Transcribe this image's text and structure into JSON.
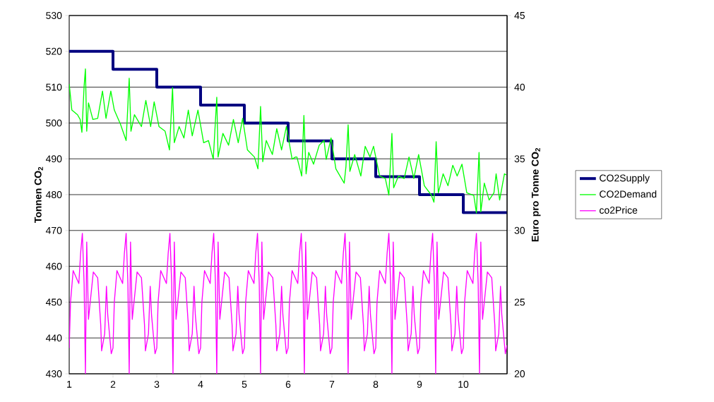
{
  "chart_data": {
    "type": "line",
    "ylabel": "Tonnen CO$_{2}$",
    "y2label": "Euro pro Tonne CO$_{2}$",
    "xlim": [
      1,
      11
    ],
    "xticks": [
      1,
      2,
      3,
      4,
      5,
      6,
      7,
      8,
      9,
      10
    ],
    "ylim": [
      430,
      530
    ],
    "yticks": [
      430,
      440,
      450,
      460,
      470,
      480,
      490,
      500,
      510,
      520,
      530
    ],
    "y2lim": [
      20,
      45
    ],
    "y2ticks": [
      20,
      25,
      30,
      35,
      40,
      45
    ],
    "grid": "y",
    "legend": "right",
    "series": [
      {
        "name": "CO2Supply",
        "type": "step",
        "color": "#000080",
        "x": [
          1,
          2,
          3,
          4,
          5,
          6,
          7,
          8,
          9,
          10,
          11
        ],
        "values": [
          520,
          515,
          510,
          505,
          500,
          495,
          490,
          485,
          480,
          475,
          475
        ]
      },
      {
        "name": "CO2Demand",
        "color": "#00ff00",
        "x": [
          1.0,
          1.06,
          1.19,
          1.25,
          1.29,
          1.34,
          1.37,
          1.4,
          1.44,
          1.54,
          1.65,
          1.76,
          1.84,
          1.95,
          2.03,
          2.17,
          2.3,
          2.37,
          2.41,
          2.49,
          2.65,
          2.75,
          2.86,
          2.94,
          3.05,
          3.19,
          3.29,
          3.36,
          3.4,
          3.51,
          3.62,
          3.72,
          3.81,
          3.94,
          4.07,
          4.18,
          4.29,
          4.37,
          4.4,
          4.51,
          4.64,
          4.75,
          4.86,
          4.96,
          5.07,
          5.23,
          5.31,
          5.37,
          5.42,
          5.5,
          5.64,
          5.74,
          5.85,
          5.96,
          6.09,
          6.17,
          6.2,
          6.31,
          6.36,
          6.41,
          6.47,
          6.58,
          6.71,
          6.82,
          6.87,
          6.98,
          7.09,
          7.28,
          7.32,
          7.37,
          7.41,
          7.52,
          7.66,
          7.76,
          7.87,
          7.95,
          8.09,
          8.22,
          8.3,
          8.37,
          8.41,
          8.52,
          8.65,
          8.76,
          8.87,
          8.98,
          9.11,
          9.27,
          9.33,
          9.38,
          9.43,
          9.54,
          9.65,
          9.76,
          9.86,
          9.97,
          10.08,
          10.24,
          10.3,
          10.36,
          10.4,
          10.48,
          10.59,
          10.7,
          10.75,
          10.83,
          10.94,
          10.98
        ],
        "values": [
          510.9,
          503.6,
          502.3,
          501,
          497.4,
          510.2,
          515.1,
          497.7,
          505.6,
          501,
          501.3,
          508.9,
          501.3,
          508.9,
          503.6,
          499.7,
          495.1,
          512.5,
          497.7,
          502.3,
          499,
          506.3,
          499,
          505.9,
          499,
          497.7,
          492.5,
          509.9,
          494.5,
          499,
          495.8,
          503.6,
          496.4,
          503.6,
          494.5,
          495.1,
          489.9,
          507.2,
          490.5,
          497.1,
          493.8,
          501,
          494.5,
          501.3,
          492.5,
          490.5,
          487.2,
          504.6,
          489.2,
          495.1,
          491.2,
          498.4,
          492.5,
          499,
          489.9,
          490.5,
          490.5,
          485.2,
          502.1,
          485.8,
          491.8,
          488.5,
          493.8,
          495.1,
          489.8,
          495.8,
          487.2,
          483.2,
          487.8,
          499.5,
          486.5,
          491.2,
          485.2,
          493.5,
          490.5,
          493.5,
          485.2,
          484.5,
          479.9,
          497.1,
          481.9,
          485.2,
          484.5,
          490.5,
          484.5,
          491.2,
          482.5,
          479.9,
          477.9,
          494.8,
          480.5,
          485.8,
          482.5,
          488.2,
          485.2,
          488.5,
          480.5,
          479.8,
          474.9,
          491.8,
          475.2,
          483.2,
          478.5,
          480.5,
          485.8,
          478.5,
          485.8,
          485.5
        ]
      },
      {
        "name": "co2Price",
        "axis": "y2",
        "color": "#ff00ff",
        "x": [
          1,
          1.03,
          1.09,
          1.22,
          1.26,
          1.3,
          1.34,
          1.37,
          1.4,
          1.44,
          1.55,
          1.65,
          1.72,
          1.74,
          1.81,
          1.85,
          1.88,
          1.96,
          2,
          2.03,
          2.09,
          2.22,
          2.26,
          2.3,
          2.34,
          2.37,
          2.4,
          2.44,
          2.55,
          2.65,
          2.72,
          2.74,
          2.81,
          2.85,
          2.88,
          2.96,
          3,
          3.03,
          3.09,
          3.22,
          3.26,
          3.3,
          3.34,
          3.37,
          3.4,
          3.44,
          3.55,
          3.65,
          3.72,
          3.74,
          3.81,
          3.85,
          3.88,
          3.96,
          4,
          4.03,
          4.09,
          4.22,
          4.26,
          4.3,
          4.34,
          4.37,
          4.4,
          4.44,
          4.55,
          4.65,
          4.72,
          4.74,
          4.81,
          4.85,
          4.88,
          4.96,
          5,
          5.03,
          5.09,
          5.22,
          5.26,
          5.3,
          5.34,
          5.37,
          5.4,
          5.44,
          5.55,
          5.65,
          5.72,
          5.74,
          5.81,
          5.85,
          5.88,
          5.96,
          6,
          6.03,
          6.09,
          6.22,
          6.26,
          6.3,
          6.34,
          6.37,
          6.4,
          6.44,
          6.55,
          6.65,
          6.72,
          6.74,
          6.81,
          6.85,
          6.88,
          6.96,
          7,
          7.03,
          7.09,
          7.22,
          7.26,
          7.3,
          7.34,
          7.37,
          7.4,
          7.44,
          7.55,
          7.65,
          7.72,
          7.74,
          7.81,
          7.85,
          7.88,
          7.96,
          8,
          8.03,
          8.09,
          8.22,
          8.26,
          8.3,
          8.34,
          8.37,
          8.4,
          8.44,
          8.55,
          8.65,
          8.72,
          8.74,
          8.81,
          8.85,
          8.88,
          8.96,
          9,
          9.03,
          9.09,
          9.22,
          9.26,
          9.3,
          9.34,
          9.37,
          9.4,
          9.44,
          9.55,
          9.65,
          9.72,
          9.74,
          9.81,
          9.85,
          9.88,
          9.96,
          10,
          10.03,
          10.09,
          10.22,
          10.26,
          10.3,
          10.34,
          10.37,
          10.4,
          10.44,
          10.55,
          10.65,
          10.72,
          10.74,
          10.81,
          10.85,
          10.88,
          10.96,
          11
        ],
        "values": [
          21.8,
          25,
          27.2,
          26.3,
          28.4,
          29.8,
          26.3,
          20,
          29.2,
          23.8,
          27.1,
          26.7,
          23.4,
          21.6,
          22.8,
          26.1,
          24.1,
          21.4,
          21.8,
          25,
          27.2,
          26.3,
          28.4,
          29.8,
          26.3,
          20,
          29.2,
          23.8,
          27.1,
          26.7,
          23.4,
          21.6,
          22.8,
          26.1,
          24.1,
          21.4,
          21.8,
          25,
          27.2,
          26.3,
          28.4,
          29.8,
          26.3,
          20,
          29.2,
          23.8,
          27.1,
          26.7,
          23.4,
          21.6,
          22.8,
          26.1,
          24.1,
          21.4,
          21.8,
          25,
          27.2,
          26.3,
          28.4,
          29.8,
          26.3,
          20,
          29.2,
          23.8,
          27.1,
          26.7,
          23.4,
          21.6,
          22.8,
          26.1,
          24.1,
          21.4,
          21.8,
          25,
          27.2,
          26.3,
          28.4,
          29.8,
          26.3,
          20,
          29.2,
          23.8,
          27.1,
          26.7,
          23.4,
          21.6,
          22.8,
          26.1,
          24.1,
          21.4,
          21.8,
          25,
          27.2,
          26.3,
          28.4,
          29.8,
          26.3,
          20,
          29.2,
          23.8,
          27.1,
          26.7,
          23.4,
          21.6,
          22.8,
          26.1,
          24.1,
          21.4,
          21.8,
          25,
          27.2,
          26.3,
          28.4,
          29.8,
          26.3,
          20,
          29.2,
          23.8,
          27.1,
          26.7,
          23.4,
          21.6,
          22.8,
          26.1,
          24.1,
          21.4,
          21.8,
          25,
          27.2,
          26.3,
          28.4,
          29.8,
          26.3,
          20,
          29.2,
          23.8,
          27.1,
          26.7,
          23.4,
          21.6,
          22.8,
          26.1,
          24.1,
          21.4,
          21.8,
          25,
          27.2,
          26.3,
          28.4,
          29.8,
          26.3,
          20,
          29.2,
          23.8,
          27.1,
          26.7,
          23.4,
          21.6,
          22.8,
          26.1,
          24.1,
          21.4,
          21.8,
          25,
          27.2,
          26.3,
          28.4,
          29.8,
          26.3,
          20,
          29.2,
          23.8,
          27.1,
          26.7,
          23.4,
          21.6,
          22.8,
          26.1,
          24.1,
          21.4,
          22
        ]
      }
    ]
  }
}
